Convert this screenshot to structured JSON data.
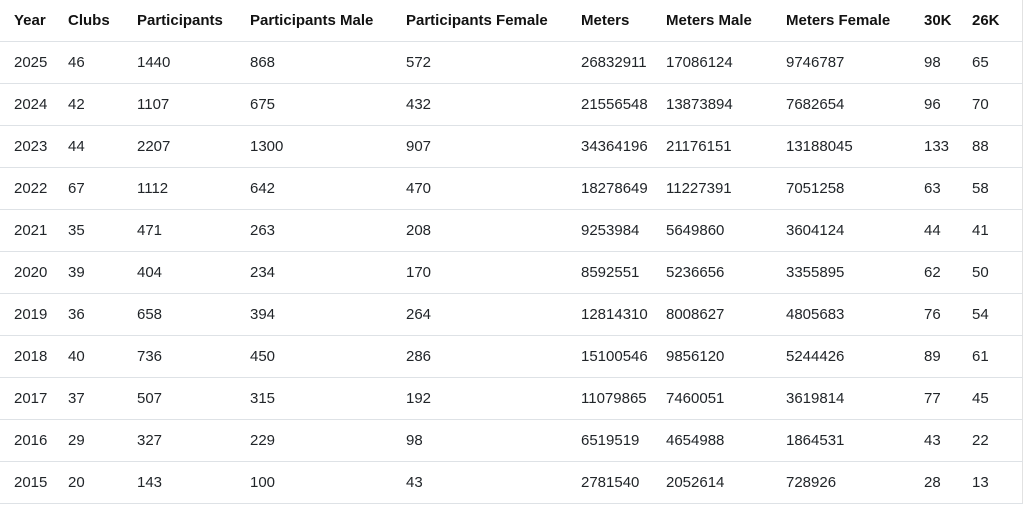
{
  "chart_data": {
    "type": "table",
    "columns": [
      "Year",
      "Clubs",
      "Participants",
      "Participants Male",
      "Participants Female",
      "Meters",
      "Meters Male",
      "Meters Female",
      "30K",
      "26K"
    ],
    "column_keys": [
      "year",
      "clubs",
      "participants",
      "participants-male",
      "participants-female",
      "meters",
      "meters-male",
      "meters-female",
      "30k",
      "26k"
    ],
    "rows": [
      [
        "2025",
        "46",
        "1440",
        "868",
        "572",
        "26832911",
        "17086124",
        "9746787",
        "98",
        "65"
      ],
      [
        "2024",
        "42",
        "1107",
        "675",
        "432",
        "21556548",
        "13873894",
        "7682654",
        "96",
        "70"
      ],
      [
        "2023",
        "44",
        "2207",
        "1300",
        "907",
        "34364196",
        "21176151",
        "13188045",
        "133",
        "88"
      ],
      [
        "2022",
        "67",
        "1112",
        "642",
        "470",
        "18278649",
        "11227391",
        "7051258",
        "63",
        "58"
      ],
      [
        "2021",
        "35",
        "471",
        "263",
        "208",
        "9253984",
        "5649860",
        "3604124",
        "44",
        "41"
      ],
      [
        "2020",
        "39",
        "404",
        "234",
        "170",
        "8592551",
        "5236656",
        "3355895",
        "62",
        "50"
      ],
      [
        "2019",
        "36",
        "658",
        "394",
        "264",
        "12814310",
        "8008627",
        "4805683",
        "76",
        "54"
      ],
      [
        "2018",
        "40",
        "736",
        "450",
        "286",
        "15100546",
        "9856120",
        "5244426",
        "89",
        "61"
      ],
      [
        "2017",
        "37",
        "507",
        "315",
        "192",
        "11079865",
        "7460051",
        "3619814",
        "77",
        "45"
      ],
      [
        "2016",
        "29",
        "327",
        "229",
        "98",
        "6519519",
        "4654988",
        "1864531",
        "43",
        "22"
      ],
      [
        "2015",
        "20",
        "143",
        "100",
        "43",
        "2781540",
        "2052614",
        "728926",
        "28",
        "13"
      ]
    ],
    "layout": {
      "grid": "horizontal-row-dividers-only",
      "header_style": "bold",
      "alignment": "left"
    }
  },
  "colors": {
    "background": "#ffffff",
    "row_divider": "#dee2e6",
    "body_text": "#212529",
    "header_text": "#121212"
  }
}
